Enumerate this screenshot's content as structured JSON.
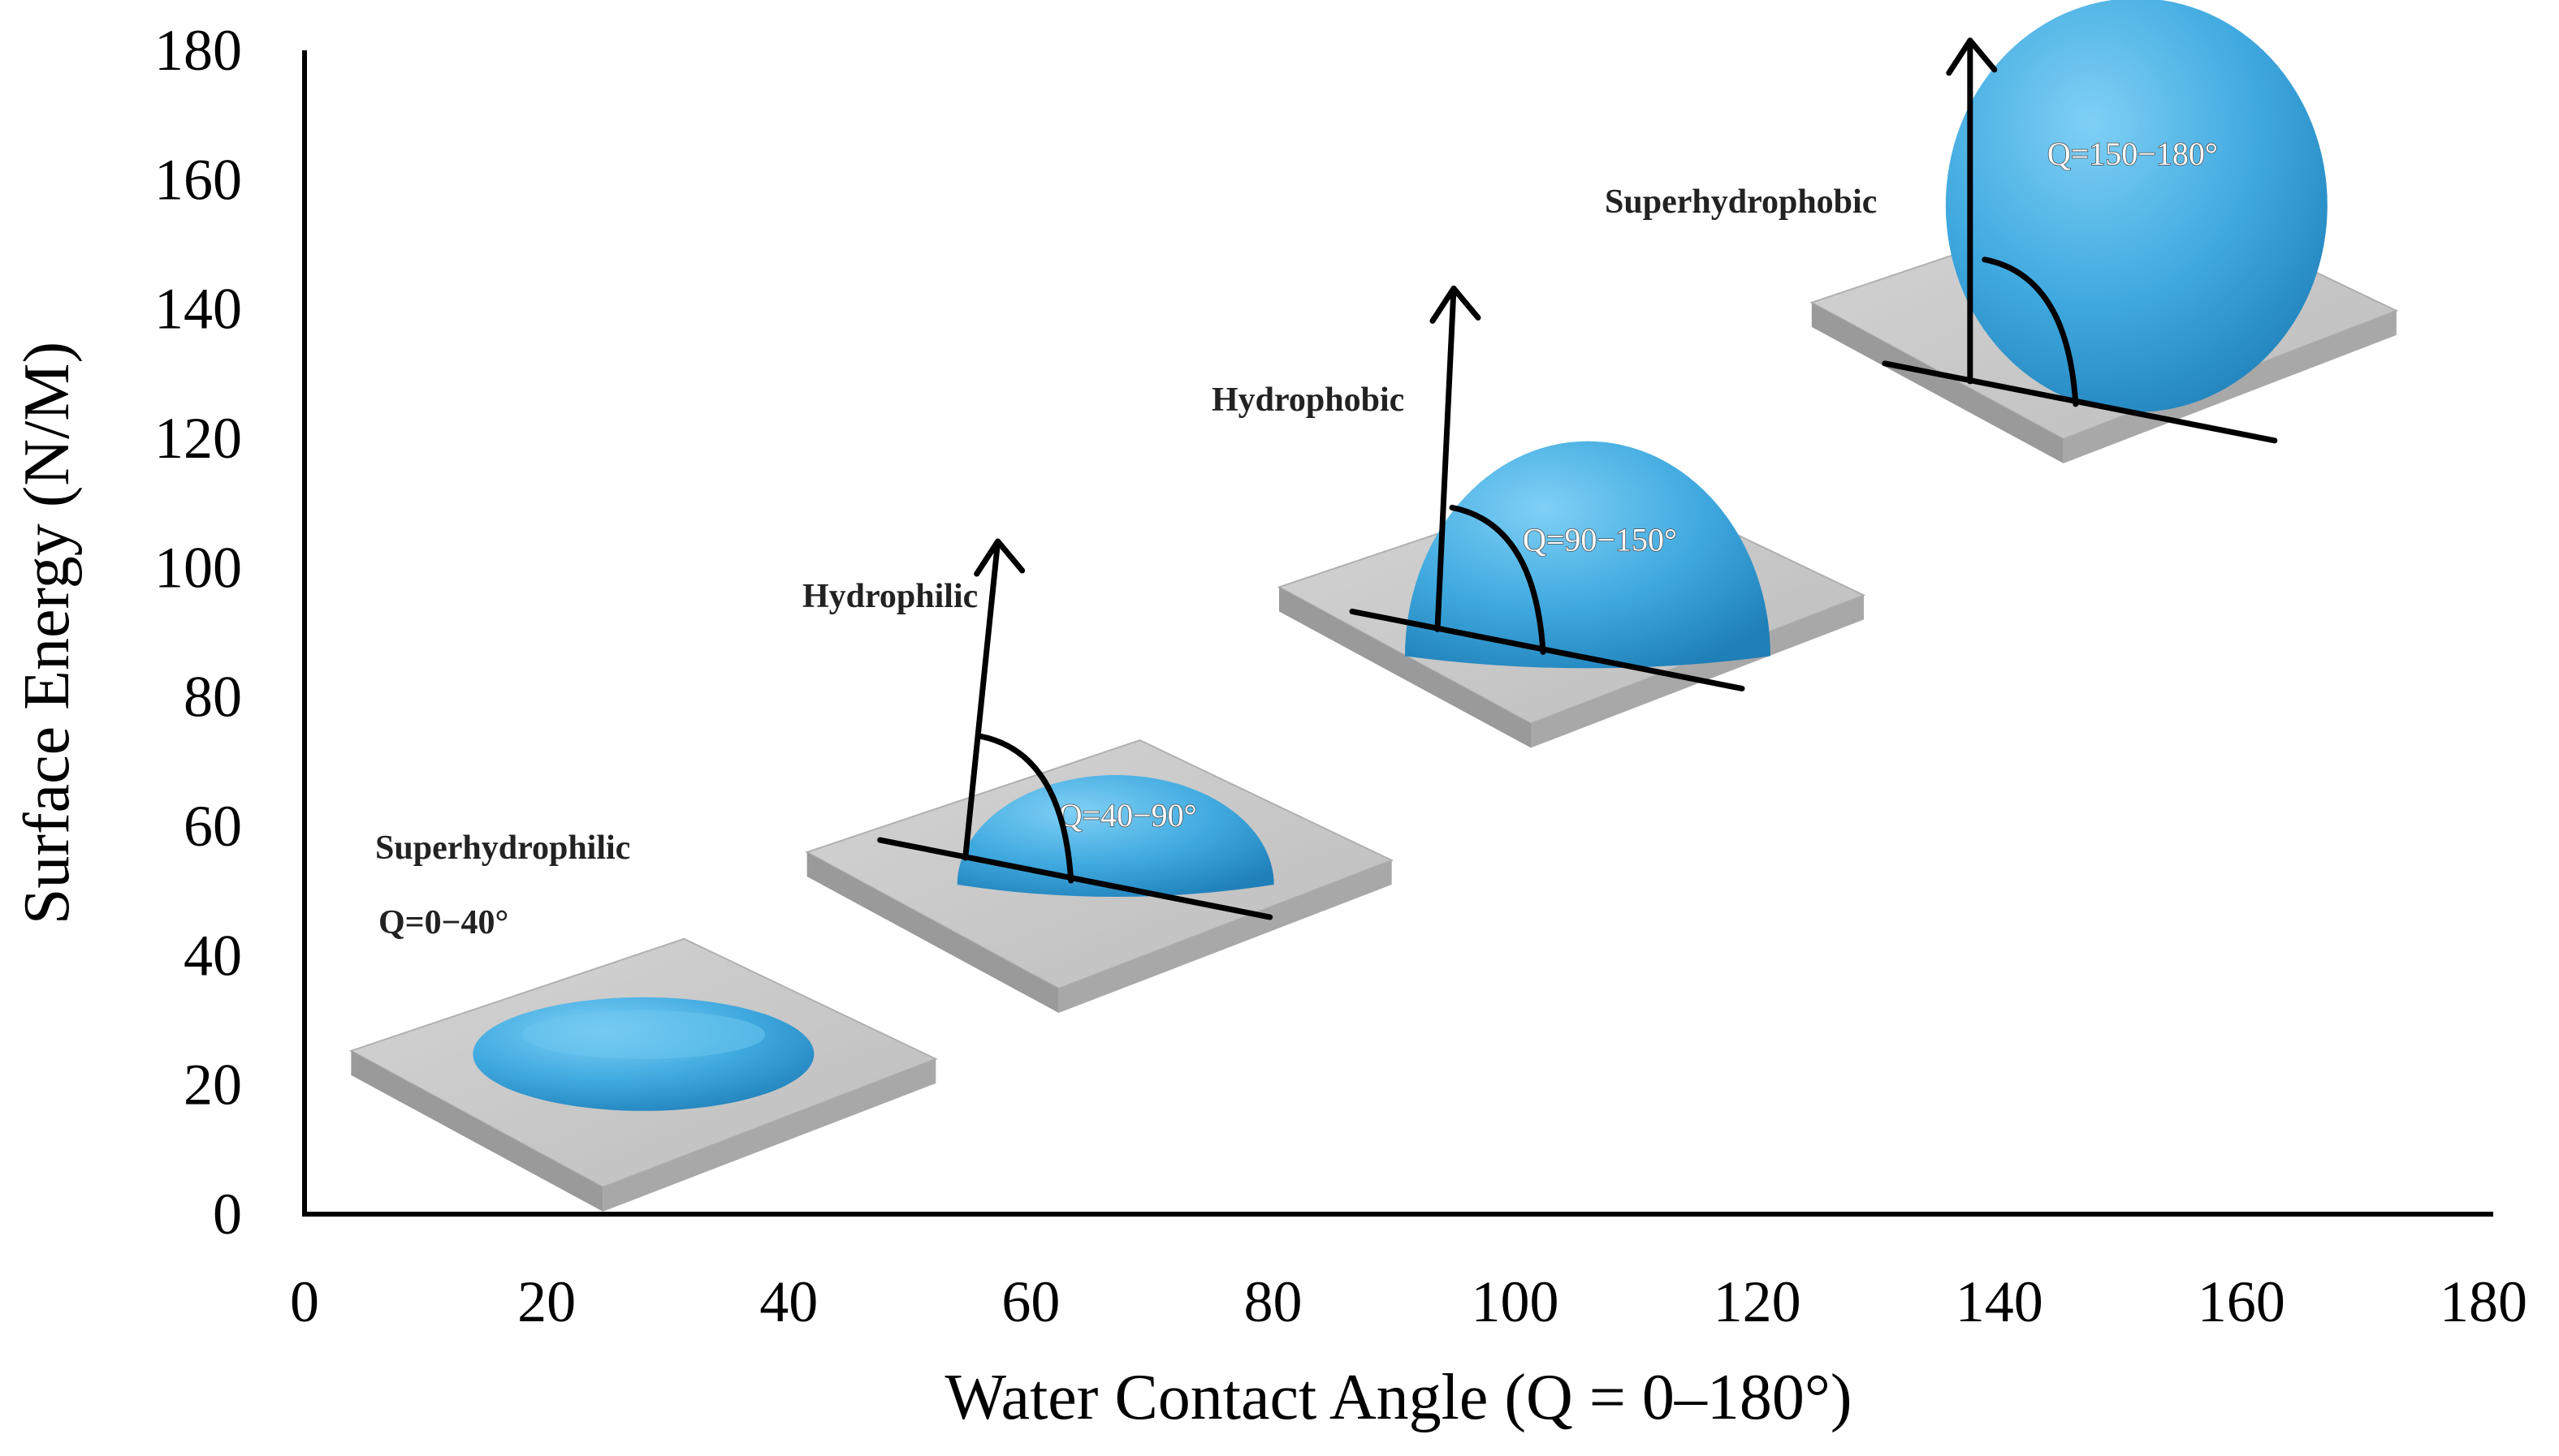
{
  "chart_data": {
    "type": "scatter",
    "title": "",
    "xlabel": "Water Contact Angle (Q = 0–180°)",
    "ylabel": "Surface Energy (N/M)",
    "xlim": [
      0,
      180
    ],
    "ylim": [
      0,
      180
    ],
    "x_ticks": [
      "0",
      "20",
      "40",
      "60",
      "80",
      "100",
      "120",
      "140",
      "160",
      "180"
    ],
    "y_ticks": [
      "0",
      "20",
      "40",
      "60",
      "80",
      "100",
      "120",
      "140",
      "160",
      "180"
    ],
    "grid": false,
    "legend": "none",
    "colors": {
      "droplet": "#3fa9df",
      "droplet_dark": "#1f7fb8",
      "plate_top": "#c9c9c9",
      "plate_side": "#9a9a9a"
    },
    "regions": [
      {
        "name": "Superhydrophilic",
        "range_label": "Q=0−40°",
        "x": 28,
        "y": 24,
        "drop": "film"
      },
      {
        "name": "Hydrophilic",
        "range_label": "Q=40−90°",
        "x": 67,
        "y": 61,
        "drop": "cap"
      },
      {
        "name": "Hydrophobic",
        "range_label": "Q=90−150°",
        "x": 106,
        "y": 102,
        "drop": "half"
      },
      {
        "name": "Superhydrophobic",
        "range_label": "Q=150−180°",
        "x": 150,
        "y": 146,
        "drop": "sphere"
      }
    ]
  }
}
